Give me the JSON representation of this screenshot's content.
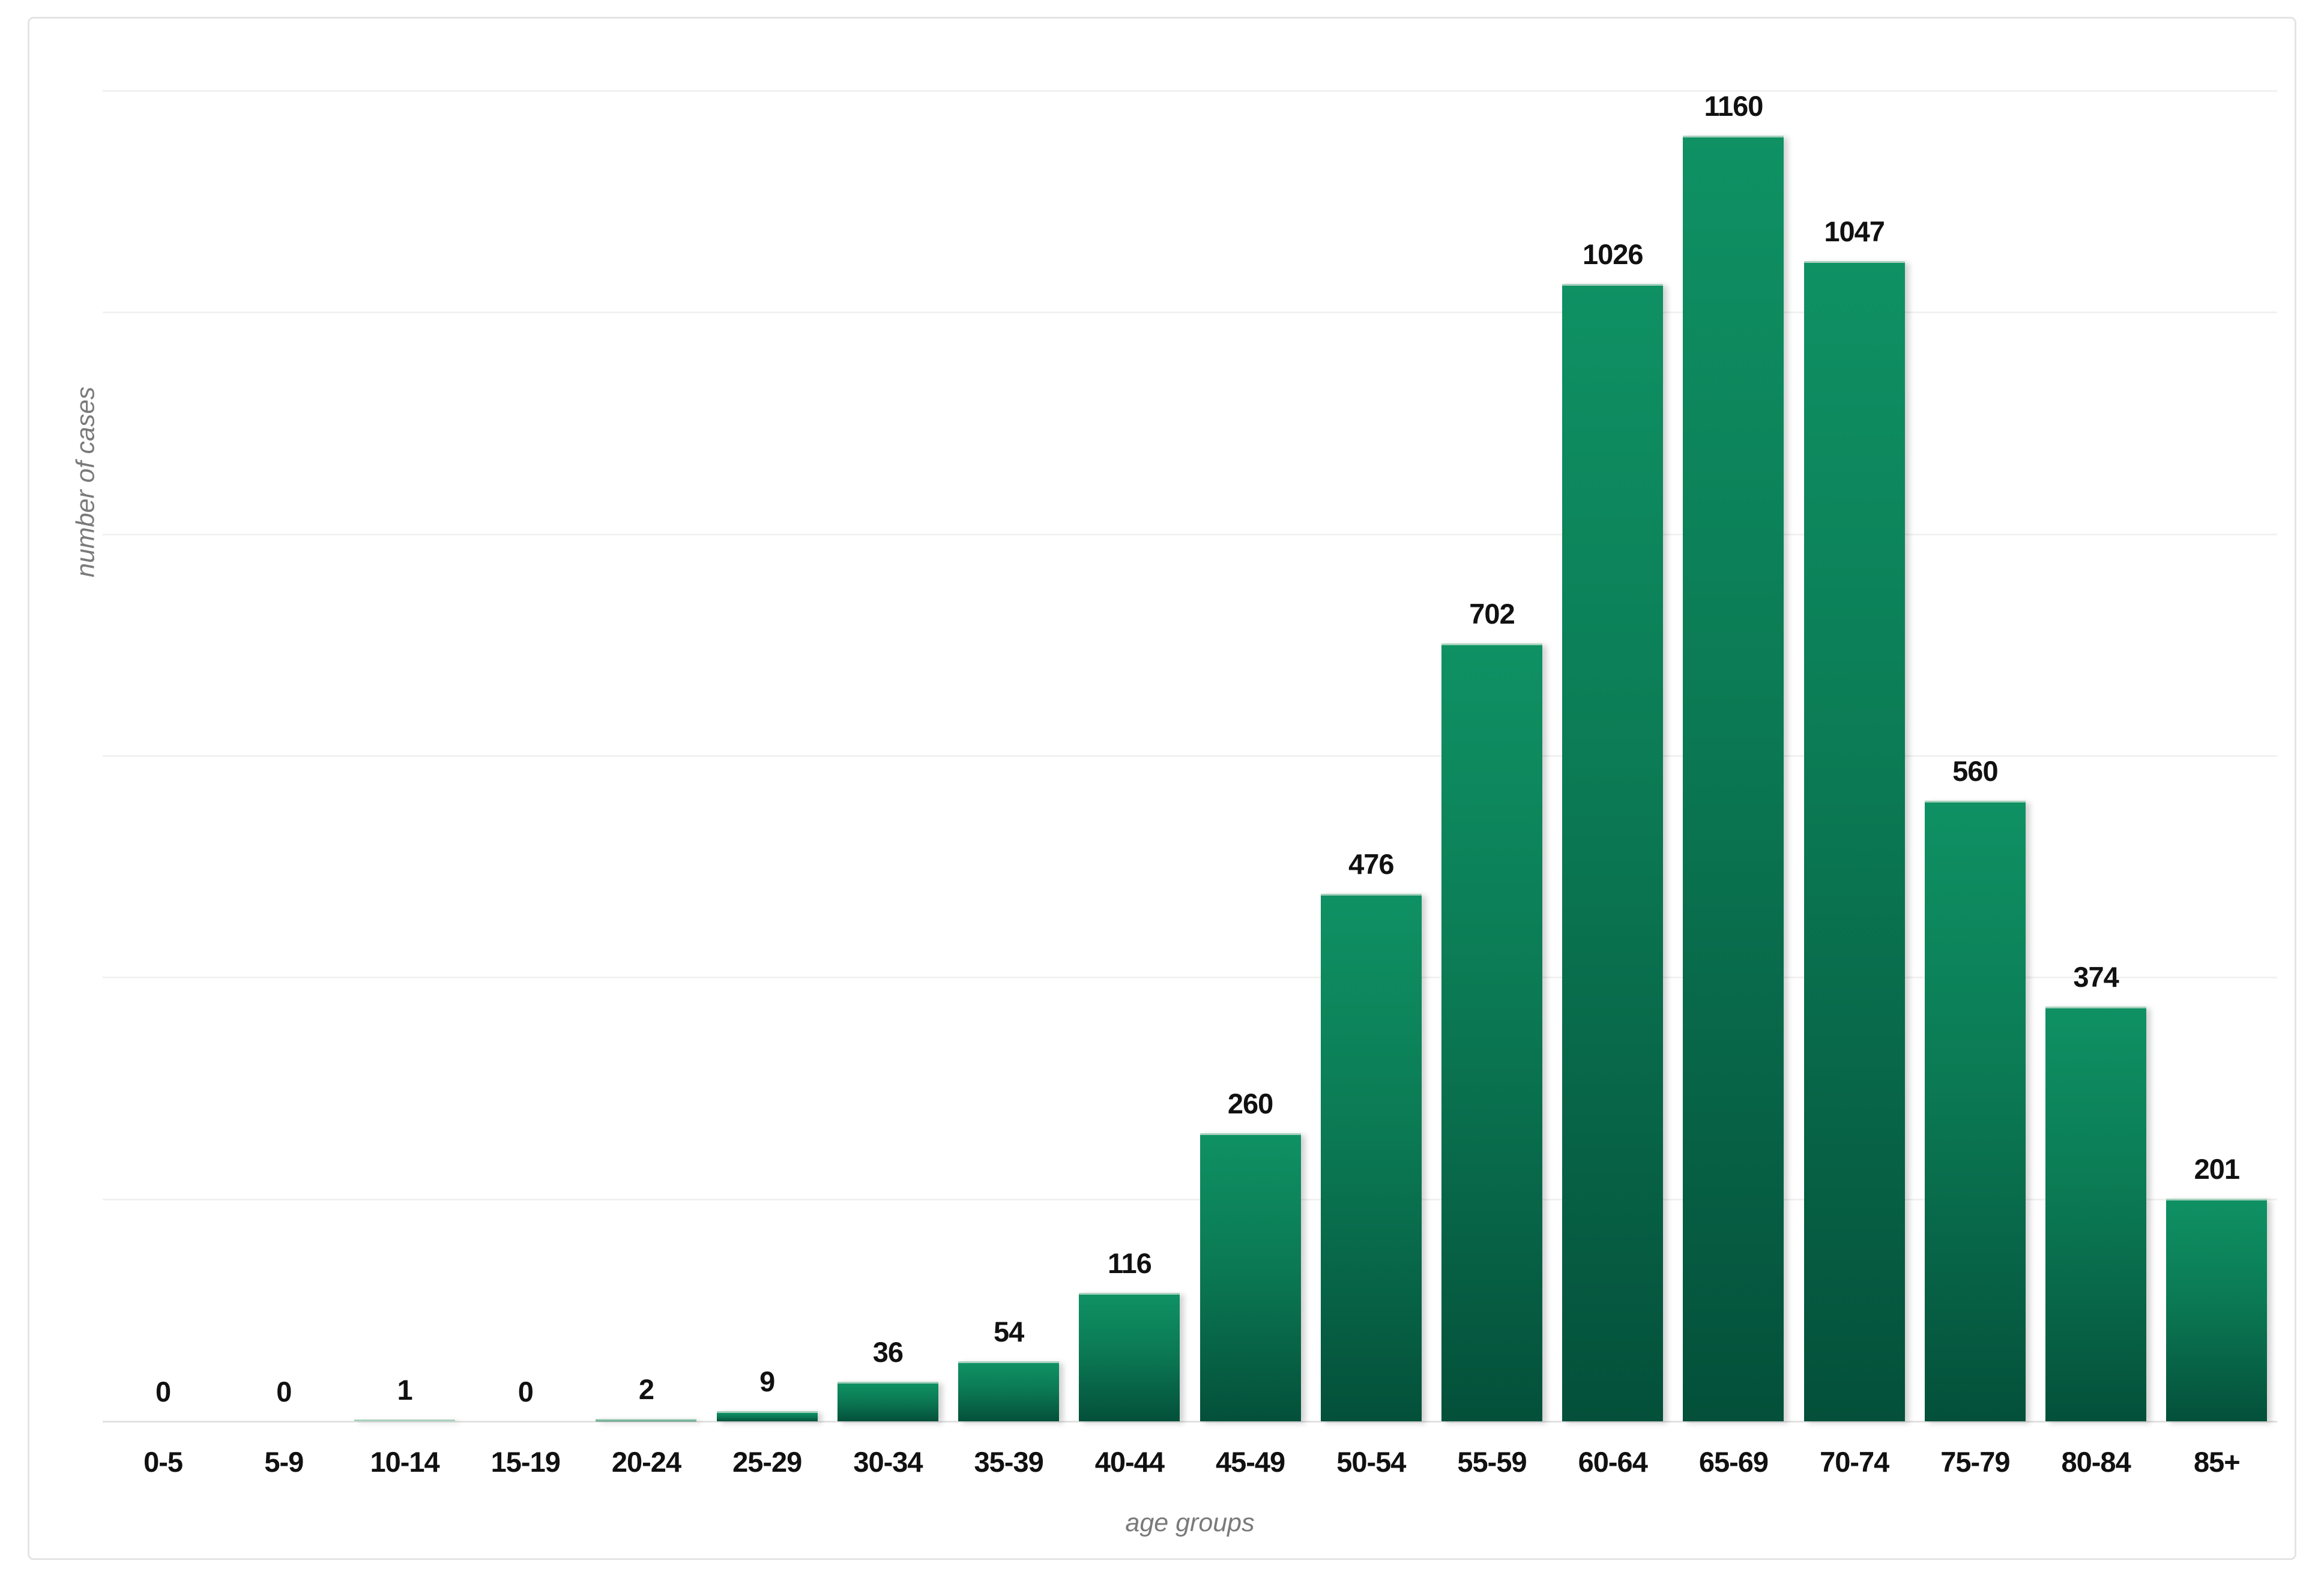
{
  "chart_data": {
    "type": "bar",
    "title": "",
    "categories": [
      "0-5",
      "5-9",
      "10-14",
      "15-19",
      "20-24",
      "25-29",
      "30-34",
      "35-39",
      "40-44",
      "45-49",
      "50-54",
      "55-59",
      "60-64",
      "65-69",
      "70-74",
      "75-79",
      "80-84",
      "85+"
    ],
    "values": [
      0,
      0,
      1,
      0,
      2,
      9,
      36,
      54,
      116,
      260,
      476,
      702,
      1026,
      1160,
      1047,
      560,
      374,
      201
    ],
    "xlabel": "age groups",
    "ylabel": "number of cases",
    "ylim": [
      0,
      1200
    ],
    "gridline_step": 200,
    "grid": "horizontal",
    "legend": "none",
    "data_labels": "above-bars",
    "colors": {
      "bar_gradient_top": "#0f9164",
      "bar_gradient_bottom": "#04503a",
      "bar_top_edge": "#a5d1bc",
      "label_text": "#111111",
      "axis_label_text": "#7a7a7a",
      "gridline": "#f1f1f1",
      "baseline": "#e2e2e2",
      "card_border": "#e4e4e4",
      "background": "#ffffff"
    }
  }
}
